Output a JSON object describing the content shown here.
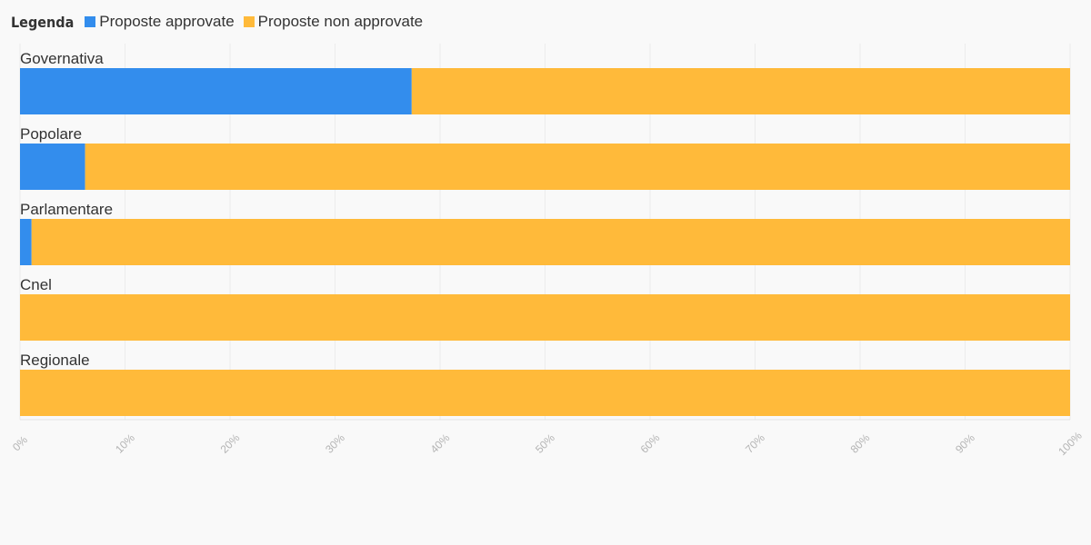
{
  "legend": {
    "title": "Legenda",
    "items": [
      {
        "label": "Proposte approvate",
        "color": "#338ded"
      },
      {
        "label": "Proposte non approvate",
        "color": "#ffba3a"
      }
    ]
  },
  "chart_data": {
    "type": "bar",
    "orientation": "horizontal",
    "stacked": true,
    "categories": [
      "Governativa",
      "Popolare",
      "Parlamentare",
      "Cnel",
      "Regionale"
    ],
    "series": [
      {
        "name": "Proposte approvate",
        "color": "#338ded",
        "values": [
          37.3,
          6.2,
          1.1,
          0,
          0
        ]
      },
      {
        "name": "Proposte non approvate",
        "color": "#ffba3a",
        "values": [
          62.7,
          93.8,
          98.9,
          100,
          100
        ]
      }
    ],
    "xlim": [
      0,
      100
    ],
    "xticks": [
      "0%",
      "10%",
      "20%",
      "30%",
      "40%",
      "50%",
      "60%",
      "70%",
      "80%",
      "90%",
      "100%"
    ],
    "grid": true,
    "legend_position": "top-left"
  }
}
